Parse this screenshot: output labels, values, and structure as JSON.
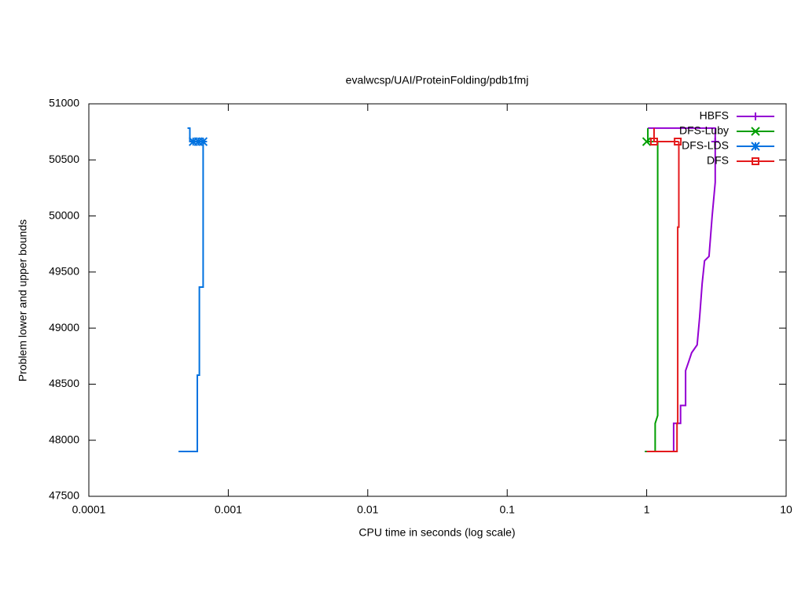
{
  "chart_data": {
    "type": "line",
    "title": "evalwcsp/UAI/ProteinFolding/pdb1fmj",
    "x_label": "CPU time in seconds (log scale)",
    "y_label": "Problem lower and upper bounds",
    "xscale": "log",
    "xlim": [
      0.0001,
      10
    ],
    "xticks": [
      0.0001,
      0.001,
      0.01,
      0.1,
      1,
      10
    ],
    "ylim": [
      47500,
      51000
    ],
    "yticks": [
      47500,
      48000,
      48500,
      49000,
      49500,
      50000,
      50500,
      51000
    ],
    "legend": "top-right",
    "series": [
      {
        "name": "HBFS",
        "color": "#9400d3",
        "marker": "plus",
        "x": [
          0.97,
          1.56,
          1.56,
          1.75,
          1.75,
          1.9,
          1.9,
          2.0,
          2.1,
          2.3,
          2.4,
          2.5,
          2.6,
          2.8,
          2.95,
          3.1,
          3.1,
          null,
          1.02,
          3.1,
          3.1
        ],
        "values": [
          47900,
          47900,
          48150,
          48150,
          48310,
          48310,
          48620,
          48700,
          48780,
          48850,
          49100,
          49400,
          49600,
          49640,
          50000,
          50300,
          50663,
          null,
          50783,
          50783,
          50663
        ],
        "markers": {
          "x": [
            3.1
          ],
          "values": [
            50663
          ]
        }
      },
      {
        "name": "DFS-Luby",
        "color": "#009e00",
        "marker": "cross",
        "x": [
          0.97,
          1.15,
          1.15,
          1.2,
          1.2,
          null,
          1.02,
          1.02,
          1.2
        ],
        "values": [
          47900,
          47900,
          48150,
          48220,
          50663,
          null,
          50783,
          50663,
          50663
        ],
        "markers": {
          "x": [
            1.0
          ],
          "values": [
            50663
          ]
        }
      },
      {
        "name": "DFS-LDS",
        "color": "#0072e0",
        "marker": "star",
        "x": [
          0.00044,
          0.0006,
          0.0006,
          0.00062,
          0.00062,
          0.00066,
          0.00066,
          null,
          0.00051,
          0.00053,
          0.00053,
          0.00066
        ],
        "values": [
          47900,
          47900,
          48580,
          48580,
          49366,
          49366,
          50663,
          null,
          50783,
          50783,
          50663,
          50663
        ],
        "markers": {
          "x": [
            0.00056,
            0.00061,
            0.00066
          ],
          "values": [
            50663,
            50663,
            50663
          ]
        }
      },
      {
        "name": "DFS",
        "color": "#e41a1c",
        "marker": "square",
        "x": [
          1.0,
          1.65,
          1.65,
          1.67,
          1.67,
          1.7,
          1.7,
          null,
          1.13,
          1.13,
          1.7
        ],
        "values": [
          47900,
          47900,
          48150,
          48150,
          49900,
          49900,
          50663,
          null,
          50783,
          50663,
          50663
        ],
        "markers": {
          "x": [
            1.13,
            1.67
          ],
          "values": [
            50663,
            50663
          ]
        }
      }
    ]
  }
}
